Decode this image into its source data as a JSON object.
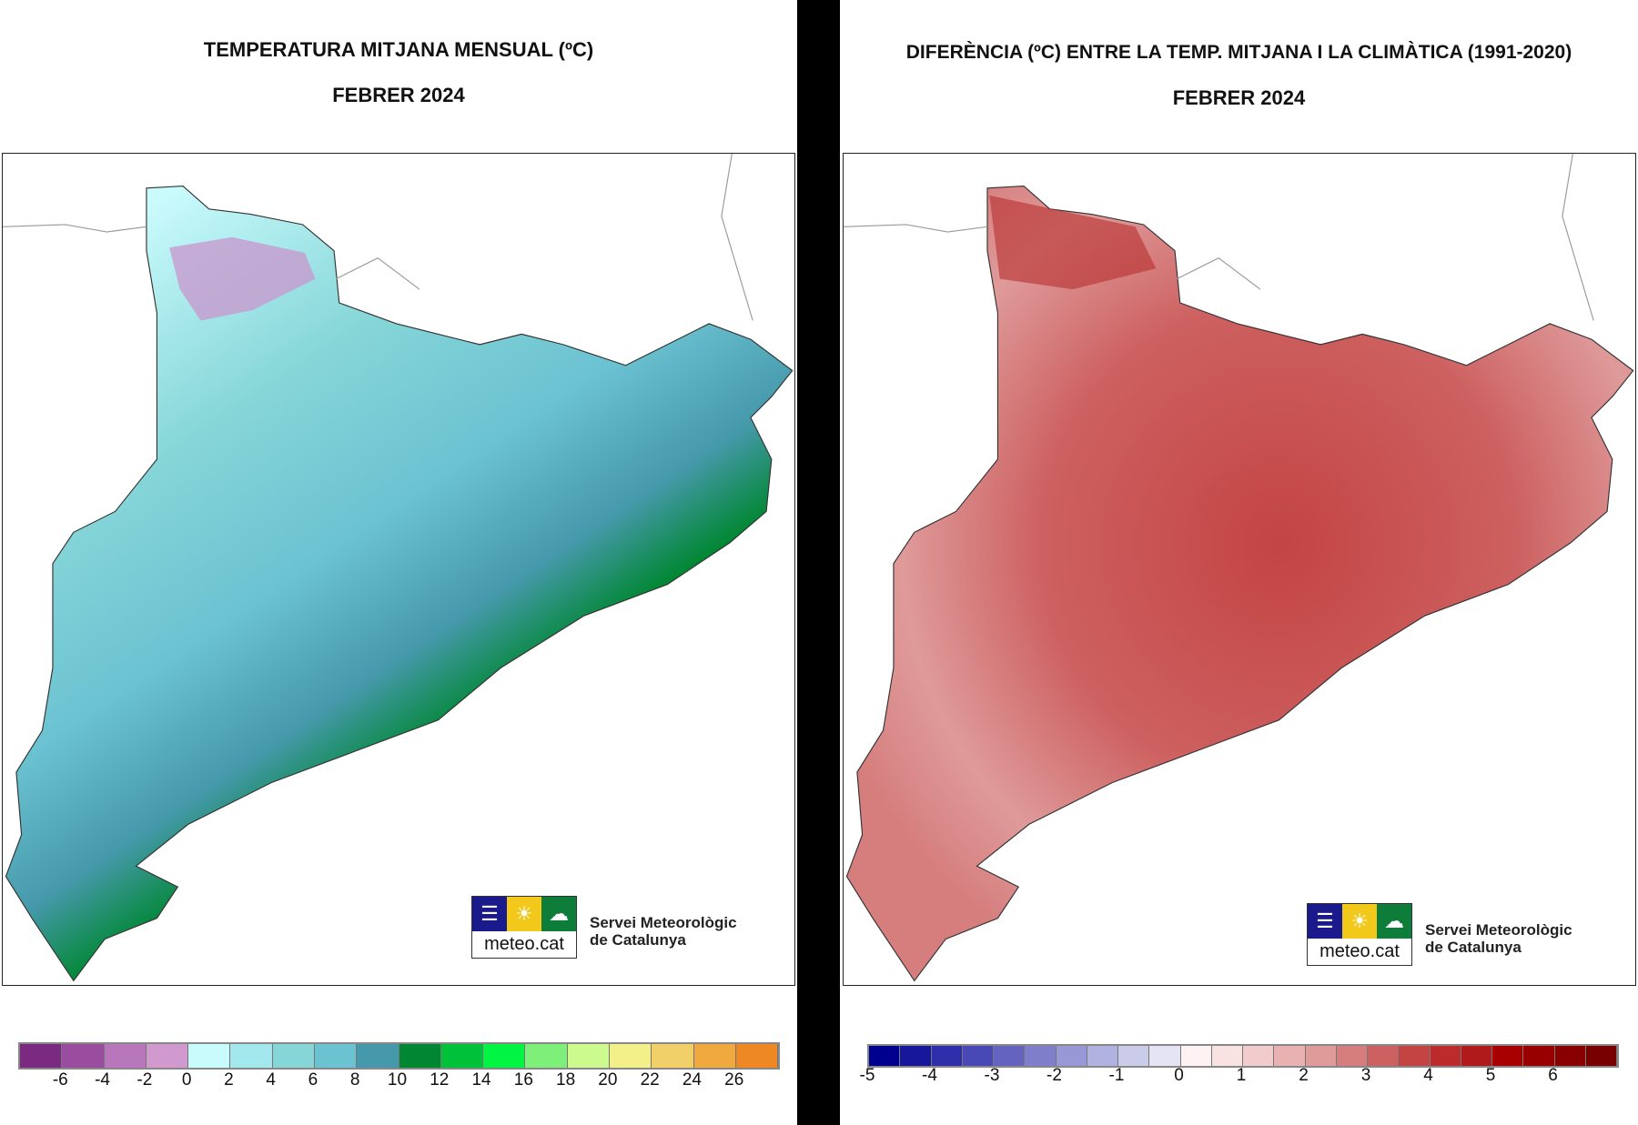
{
  "left": {
    "title": "TEMPERATURA MITJANA MENSUAL (ºC)",
    "subtitle": "FEBRER 2024",
    "legend_colors": [
      "#7b2a82",
      "#9a4c9e",
      "#b877bb",
      "#d09acf",
      "#c9fafc",
      "#a3e8ec",
      "#86d6d8",
      "#6bc2d1",
      "#4599aa",
      "#018733",
      "#00c13a",
      "#00f442",
      "#7ef07a",
      "#cdfa8e",
      "#f3f08a",
      "#f1d06a",
      "#efa93f",
      "#ee8823"
    ],
    "legend_labels": [
      "-6",
      "-4",
      "-2",
      "0",
      "2",
      "4",
      "6",
      "8",
      "10",
      "12",
      "14",
      "16",
      "18",
      "20",
      "22",
      "24",
      "26"
    ]
  },
  "right": {
    "title": "DIFERÈNCIA (ºC) ENTRE LA TEMP. MITJANA I LA CLIMÀTICA (1991-2020)",
    "subtitle": "FEBRER 2024",
    "legend_colors": [
      "#00008f",
      "#17179c",
      "#2e2eaa",
      "#4848b6",
      "#6464c0",
      "#7e7ecb",
      "#9898d6",
      "#b2b2e0",
      "#cbcbea",
      "#e4e4f4",
      "#fff2f2",
      "#f8e2e2",
      "#f0cccc",
      "#e8b2b2",
      "#df9a9a",
      "#d67e7e",
      "#cd6060",
      "#c44444",
      "#bc2c2c",
      "#b01a1a",
      "#a80000",
      "#980000",
      "#880000",
      "#780000"
    ],
    "legend_labels": [
      "-5",
      "-4",
      "-3",
      "-2",
      "-1",
      "0",
      "1",
      "2",
      "3",
      "4",
      "5",
      "6"
    ]
  },
  "logo": {
    "name": "meteo.cat",
    "org_line1": "Servei Meteorològic",
    "org_line2": "de Catalunya"
  }
}
